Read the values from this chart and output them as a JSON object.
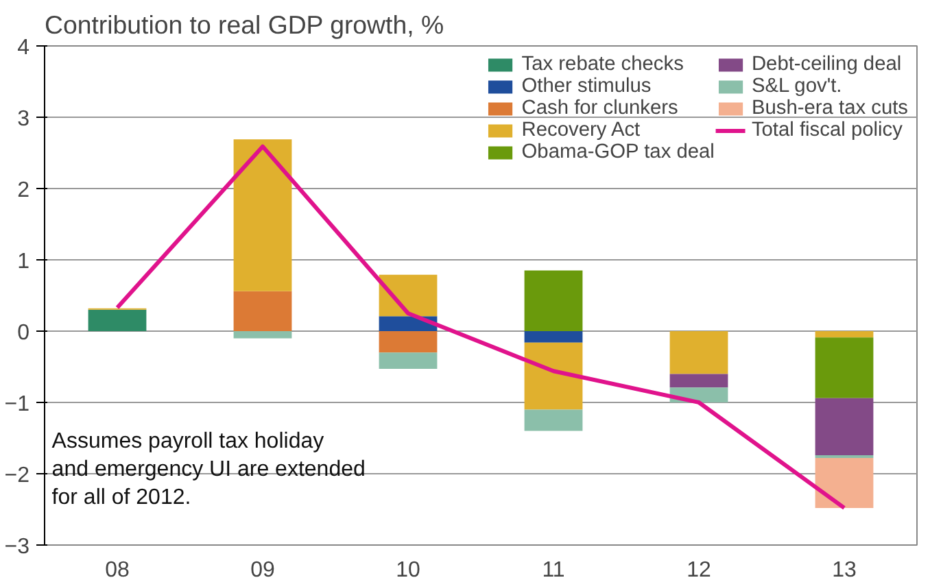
{
  "chart_data": {
    "type": "bar",
    "stacked": true,
    "title": "Contribution to real GDP growth, %",
    "categories": [
      "08",
      "09",
      "10",
      "11",
      "12",
      "13"
    ],
    "ylim": [
      -3,
      4
    ],
    "yticks": [
      -3,
      -2,
      -1,
      0,
      1,
      2,
      3,
      4
    ],
    "grid": "y",
    "legend": "top right",
    "annotations": [
      "Assumes payroll tax holiday\nand emergency UI are extended\nfor all of 2012."
    ],
    "series": [
      {
        "name": "Tax rebate checks",
        "color": "#2e8b66",
        "values": [
          0.3,
          null,
          null,
          null,
          null,
          null
        ]
      },
      {
        "name": "Other stimulus",
        "color": "#1f4e9c",
        "values": [
          null,
          null,
          0.21,
          -0.16,
          null,
          null
        ]
      },
      {
        "name": "Cash for clunkers",
        "color": "#dc7a35",
        "values": [
          null,
          0.56,
          -0.3,
          null,
          null,
          null
        ]
      },
      {
        "name": "Recovery Act",
        "color": "#e0b02e",
        "values": [
          0.02,
          2.13,
          0.58,
          -0.94,
          -0.6,
          -0.09
        ]
      },
      {
        "name": "Obama-GOP tax deal",
        "color": "#6a9a0c",
        "values": [
          null,
          null,
          null,
          0.85,
          null,
          -0.85
        ]
      },
      {
        "name": "Debt-ceiling deal",
        "color": "#834a87",
        "values": [
          null,
          null,
          null,
          null,
          -0.19,
          -0.8
        ]
      },
      {
        "name": "S&L gov't.",
        "color": "#8bbfaa",
        "values": [
          null,
          -0.1,
          -0.23,
          -0.3,
          -0.21,
          -0.04
        ]
      },
      {
        "name": "Bush-era tax cuts",
        "color": "#f4b090",
        "values": [
          null,
          null,
          null,
          null,
          null,
          -0.7
        ]
      },
      {
        "name": "Total fiscal policy",
        "type": "line",
        "color": "#e0138c",
        "marker": "none",
        "values": [
          0.33,
          2.59,
          0.25,
          -0.56,
          -1.0,
          -2.48
        ]
      }
    ]
  }
}
